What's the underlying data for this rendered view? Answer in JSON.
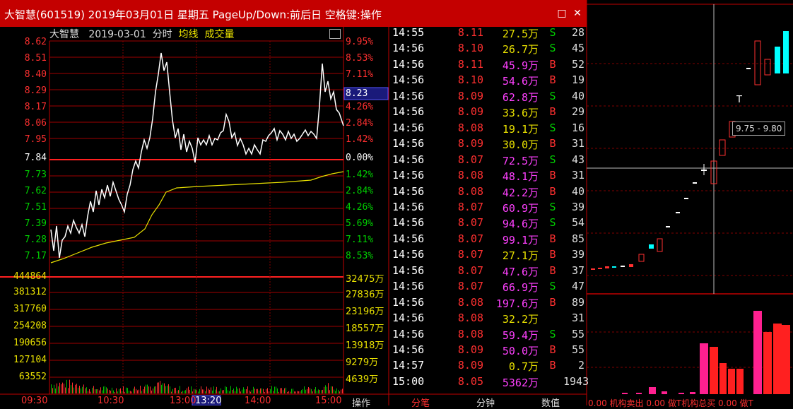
{
  "window": {
    "title": "大智慧(601519) 2019年03月01日 星期五 PageUp/Down:前后日 空格键:操作",
    "restore_glyph": "□",
    "close_glyph": "✕"
  },
  "chart_header": {
    "name": "大智慧",
    "date": "2019-03-01",
    "mode": "分时",
    "vwap_label": "均线",
    "volume_label": "成交量"
  },
  "price_axis": {
    "left": [
      "8.62",
      "8.51",
      "8.40",
      "8.29",
      "8.17",
      "8.06",
      "7.95",
      "7.84",
      "7.73",
      "7.62",
      "7.51",
      "7.39",
      "7.28",
      "7.17"
    ],
    "right": [
      "9.95%",
      "8.53%",
      "7.11%",
      "",
      "4.26%",
      "2.84%",
      "1.42%",
      "0.00%",
      "1.42%",
      "2.84%",
      "4.26%",
      "5.69%",
      "7.11%",
      "8.53%"
    ],
    "current_price": "8.23"
  },
  "volume_axis": {
    "left": [
      "444864",
      "381312",
      "317760",
      "254208",
      "190656",
      "127104",
      "63552"
    ],
    "right": [
      "32475万",
      "27836万",
      "23196万",
      "18557万",
      "13918万",
      "9279万",
      "4639万"
    ]
  },
  "time_axis": {
    "labels": [
      "09:30",
      "10:30",
      "13:00",
      "14:00",
      "15:00"
    ],
    "cursor": "13:20"
  },
  "bottom_tabs": {
    "operate": "操作",
    "ticks": "分笔",
    "divide": "分钟",
    "value": "数值"
  },
  "ticks": [
    {
      "time": "14:55",
      "price": "8.11",
      "vol": "27.5万",
      "bs": "S",
      "count": "28",
      "pc": "red",
      "vc": "yellow"
    },
    {
      "time": "14:56",
      "price": "8.10",
      "vol": "26.7万",
      "bs": "S",
      "count": "45",
      "pc": "red",
      "vc": "yellow"
    },
    {
      "time": "14:56",
      "price": "8.11",
      "vol": "45.9万",
      "bs": "B",
      "count": "52",
      "pc": "red",
      "vc": "magenta"
    },
    {
      "time": "14:56",
      "price": "8.10",
      "vol": "54.6万",
      "bs": "B",
      "count": "19",
      "pc": "red",
      "vc": "magenta"
    },
    {
      "time": "14:56",
      "price": "8.09",
      "vol": "62.8万",
      "bs": "S",
      "count": "40",
      "pc": "red",
      "vc": "magenta"
    },
    {
      "time": "14:56",
      "price": "8.09",
      "vol": "33.6万",
      "bs": "B",
      "count": "29",
      "pc": "red",
      "vc": "yellow"
    },
    {
      "time": "14:56",
      "price": "8.08",
      "vol": "19.1万",
      "bs": "S",
      "count": "16",
      "pc": "red",
      "vc": "yellow"
    },
    {
      "time": "14:56",
      "price": "8.09",
      "vol": "30.0万",
      "bs": "B",
      "count": "31",
      "pc": "red",
      "vc": "yellow"
    },
    {
      "time": "14:56",
      "price": "8.07",
      "vol": "72.5万",
      "bs": "S",
      "count": "43",
      "pc": "red",
      "vc": "magenta"
    },
    {
      "time": "14:56",
      "price": "8.08",
      "vol": "48.1万",
      "bs": "B",
      "count": "31",
      "pc": "red",
      "vc": "magenta"
    },
    {
      "time": "14:56",
      "price": "8.08",
      "vol": "42.2万",
      "bs": "B",
      "count": "40",
      "pc": "red",
      "vc": "magenta"
    },
    {
      "time": "14:56",
      "price": "8.07",
      "vol": "60.9万",
      "bs": "S",
      "count": "39",
      "pc": "red",
      "vc": "magenta"
    },
    {
      "time": "14:56",
      "price": "8.07",
      "vol": "94.6万",
      "bs": "S",
      "count": "54",
      "pc": "red",
      "vc": "magenta"
    },
    {
      "time": "14:56",
      "price": "8.07",
      "vol": "99.1万",
      "bs": "B",
      "count": "85",
      "pc": "red",
      "vc": "magenta"
    },
    {
      "time": "14:56",
      "price": "8.07",
      "vol": "27.1万",
      "bs": "B",
      "count": "39",
      "pc": "red",
      "vc": "yellow"
    },
    {
      "time": "14:56",
      "price": "8.07",
      "vol": "47.6万",
      "bs": "B",
      "count": "37",
      "pc": "red",
      "vc": "magenta"
    },
    {
      "time": "14:56",
      "price": "8.07",
      "vol": "66.9万",
      "bs": "S",
      "count": "47",
      "pc": "red",
      "vc": "magenta"
    },
    {
      "time": "14:56",
      "price": "8.08",
      "vol": "197.6万",
      "bs": "B",
      "count": "89",
      "pc": "red",
      "vc": "magenta"
    },
    {
      "time": "14:56",
      "price": "8.08",
      "vol": "32.2万",
      "bs": "",
      "count": "31",
      "pc": "red",
      "vc": "yellow"
    },
    {
      "time": "14:56",
      "price": "8.08",
      "vol": "59.4万",
      "bs": "S",
      "count": "55",
      "pc": "red",
      "vc": "magenta"
    },
    {
      "time": "14:56",
      "price": "8.09",
      "vol": "50.0万",
      "bs": "B",
      "count": "55",
      "pc": "red",
      "vc": "magenta"
    },
    {
      "time": "14:57",
      "price": "8.09",
      "vol": "0.7万",
      "bs": "B",
      "count": "2",
      "pc": "red",
      "vc": "yellow"
    },
    {
      "time": "15:00",
      "price": "8.05",
      "vol": "5362万",
      "bs": "",
      "count": "1943",
      "pc": "red",
      "vc": "magenta"
    }
  ],
  "kline_panel": {
    "range_label": "9.75 - 9.80",
    "t_marker": "T",
    "bottom_text": "0.00 机构卖出 0.00 做T机构总买 0.00 做T"
  }
}
